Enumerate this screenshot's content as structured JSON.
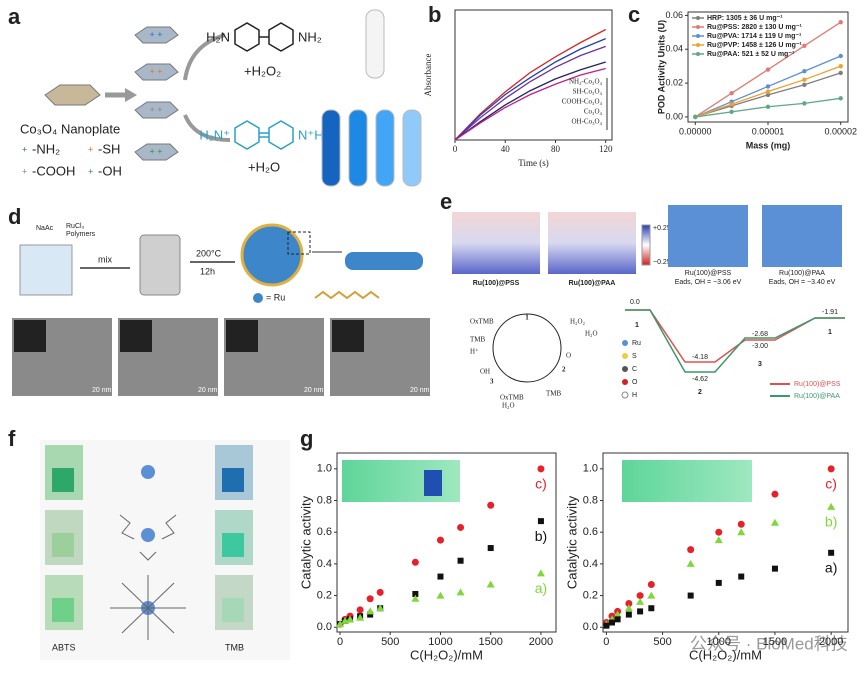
{
  "panel_labels": [
    "a",
    "b",
    "c",
    "d",
    "e",
    "f",
    "g"
  ],
  "panel_a": {
    "nanoplate": "Co₃O₄ Nanoplate",
    "groups": [
      "-NH₂",
      "-SH",
      "-COOH",
      "-OH"
    ],
    "amine_left": "H₂N",
    "amine_right": "NH₂",
    "ox_left": "H₂N⁺",
    "ox_right": "N⁺H₂",
    "reagent_1": "+H₂O₂",
    "reagent_2": "+H₂O"
  },
  "panel_d": {
    "salt": "NaAc",
    "precursor": "RuCl₃",
    "polymers": "Polymers",
    "step": "mix",
    "temperature": "200°C",
    "time": "12h",
    "legend": "= Ru",
    "scale": "20 nm"
  },
  "panel_e": {
    "side_views": [
      "Ru(100)@PSS",
      "Ru(100)@PAA"
    ],
    "colorbar": [
      "+0.25",
      "−0.25"
    ],
    "top_views": [
      {
        "name": "Ru(100)@PSS",
        "energy": "Eads, OH = −3.06 eV"
      },
      {
        "name": "Ru(100)@PAA",
        "energy": "Eads, OH = −3.40 eV"
      }
    ],
    "cycle": {
      "oxtmb_1": "OxTMB",
      "tmb_1": "TMB",
      "proton": "H⁺",
      "h2o2": "H₂O₂",
      "h2o_1": "H₂O",
      "oxygen": "O",
      "hydroxyl": "OH",
      "tmb_2": "TMB",
      "oxtmb_2": "OxTMB",
      "h2o_2": "H₂O",
      "states": [
        "1",
        "2",
        "3"
      ]
    },
    "levels": [
      "0.0",
      "-4.18",
      "-4.62",
      "-2.68",
      "-3.00",
      "-1.91"
    ],
    "states": [
      "1",
      "2",
      "3",
      "1"
    ],
    "elements": [
      "Ru",
      "S",
      "C",
      "O",
      "H"
    ],
    "legend": [
      "Ru(100)@PSS",
      "Ru(100)@PAA"
    ]
  },
  "panel_f": {
    "left": "ABTS",
    "right": "TMB"
  },
  "watermark": "公众号 · BioMed科技",
  "chart_data": [
    {
      "type": "line",
      "xlabel": "Time (s)",
      "ylabel": "Absorbance",
      "x": [
        0,
        20,
        40,
        60,
        80,
        100,
        120
      ],
      "xlim": [
        0,
        125
      ],
      "xticks": [
        0,
        40,
        80,
        120
      ],
      "ylim": [
        0,
        1
      ],
      "series": [
        {
          "name": "NH₂-Co₃O₄",
          "color": "#d62728",
          "values": [
            0,
            0.2,
            0.37,
            0.52,
            0.64,
            0.75,
            0.85
          ]
        },
        {
          "name": "SH-Co₃O₄",
          "color": "#1f3fbf",
          "values": [
            0,
            0.19,
            0.35,
            0.48,
            0.6,
            0.7,
            0.78
          ]
        },
        {
          "name": "COOH-Co₃O₄",
          "color": "#7030a0",
          "values": [
            0,
            0.17,
            0.32,
            0.45,
            0.56,
            0.65,
            0.72
          ]
        },
        {
          "name": "Co₃O₄",
          "color": "#222266",
          "values": [
            0,
            0.14,
            0.27,
            0.38,
            0.47,
            0.54,
            0.6
          ]
        },
        {
          "name": "OH-Co₃O₄",
          "color": "#c0208a",
          "values": [
            0,
            0.13,
            0.25,
            0.35,
            0.43,
            0.5,
            0.55
          ]
        }
      ]
    },
    {
      "type": "line",
      "markers": true,
      "xlabel": "Mass (mg)",
      "ylabel": "POD Activity Units (U)",
      "x": [
        0,
        5e-06,
        1e-05,
        1.5e-05,
        2e-05
      ],
      "xlim": [
        -1e-06,
        2.1e-05
      ],
      "xticks": [
        {
          "value": 0,
          "label": "0.00000"
        },
        {
          "value": 1e-05,
          "label": "0.00001"
        },
        {
          "value": 2e-05,
          "label": "0.00002"
        }
      ],
      "ylim": [
        -0.003,
        0.062
      ],
      "yticks": [
        {
          "value": 0,
          "label": "0.00"
        },
        0.02,
        0.04,
        0.06
      ],
      "series": [
        {
          "name": "HRP: 1305 ± 36 U mg⁻¹",
          "color": "#7f7f7f",
          "values": [
            0,
            0.0065,
            0.013,
            0.019,
            0.026
          ]
        },
        {
          "name": "Ru@PSS: 2820 ± 130 U mg⁻¹",
          "color": "#e07b73",
          "values": [
            0,
            0.014,
            0.028,
            0.042,
            0.056
          ]
        },
        {
          "name": "Ru@PVA: 1714 ± 119 U mg⁻¹",
          "color": "#5b8fd6",
          "values": [
            0,
            0.009,
            0.018,
            0.027,
            0.036
          ]
        },
        {
          "name": "Ru@PVP: 1458 ± 126 U mg⁻¹",
          "color": "#f0a030",
          "values": [
            0,
            0.0075,
            0.015,
            0.022,
            0.03
          ]
        },
        {
          "name": "Ru@PAA: 521 ± 52 U mg⁻¹",
          "color": "#5fa88a",
          "values": [
            0,
            0.003,
            0.006,
            0.008,
            0.011
          ]
        }
      ]
    },
    {
      "type": "scatter",
      "xlabel": "C(H₂O₂)/mM",
      "ylabel": "Catalytic activity",
      "x": [
        0,
        50,
        100,
        200,
        300,
        400,
        750,
        1000,
        1200,
        1500,
        2000
      ],
      "xlim": [
        -30,
        2150
      ],
      "xticks": [
        0,
        500,
        1000,
        1500,
        2000
      ],
      "ylim": [
        -0.03,
        1.1
      ],
      "yticks": [
        {
          "value": 0,
          "label": "0.0"
        },
        0.2,
        0.4,
        0.6,
        0.8,
        {
          "value": 1,
          "label": "1.0"
        }
      ],
      "series": [
        {
          "name": "c)",
          "color": "#e8202a",
          "marker": "circle",
          "values": [
            0.02,
            0.05,
            0.07,
            0.11,
            0.18,
            0.22,
            0.41,
            0.55,
            0.63,
            0.77,
            1.0
          ]
        },
        {
          "name": "b)",
          "color": "#111111",
          "marker": "square",
          "values": [
            0.02,
            0.04,
            0.05,
            0.07,
            0.08,
            0.12,
            0.21,
            0.32,
            0.42,
            0.5,
            0.67
          ]
        },
        {
          "name": "a)",
          "color": "#7ed83a",
          "marker": "triangle",
          "values": [
            0.02,
            0.04,
            0.05,
            0.06,
            0.1,
            0.12,
            0.18,
            0.2,
            0.22,
            0.27,
            0.34
          ]
        }
      ]
    },
    {
      "type": "scatter",
      "xlabel": "C(H₂O₂)/mM",
      "ylabel": "Catalytic activity",
      "x": [
        0,
        50,
        100,
        200,
        300,
        400,
        750,
        1000,
        1200,
        1500,
        2000
      ],
      "xlim": [
        -30,
        2150
      ],
      "xticks": [
        0,
        500,
        1000,
        1500,
        2000
      ],
      "ylim": [
        -0.03,
        1.1
      ],
      "yticks": [
        {
          "value": 0,
          "label": "0.0"
        },
        0.2,
        0.4,
        0.6,
        0.8,
        {
          "value": 1,
          "label": "1.0"
        }
      ],
      "series": [
        {
          "name": "c)",
          "color": "#e8202a",
          "marker": "circle",
          "values": [
            0.03,
            0.07,
            0.1,
            0.15,
            0.2,
            0.27,
            0.49,
            0.6,
            0.65,
            0.84,
            1.0
          ]
        },
        {
          "name": "b)",
          "color": "#7ed83a",
          "marker": "triangle",
          "values": [
            0.02,
            0.05,
            0.08,
            0.12,
            0.16,
            0.2,
            0.4,
            0.55,
            0.6,
            0.66,
            0.76
          ]
        },
        {
          "name": "a)",
          "color": "#111111",
          "marker": "square",
          "values": [
            0.01,
            0.03,
            0.05,
            0.08,
            0.1,
            0.12,
            0.2,
            0.28,
            0.32,
            0.37,
            0.47
          ]
        }
      ]
    }
  ]
}
